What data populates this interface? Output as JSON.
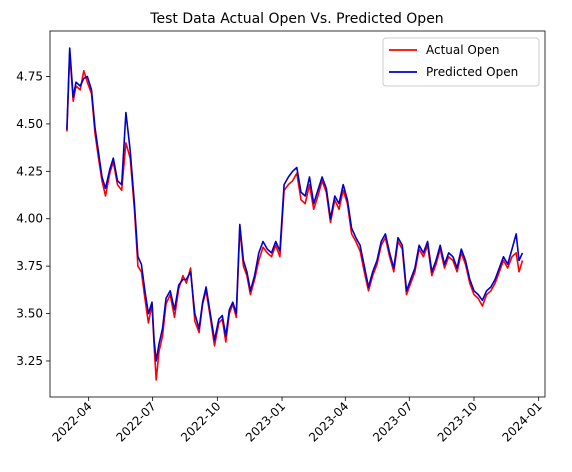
{
  "chart_data": {
    "type": "line",
    "title": "Test Data Actual Open Vs. Predicted Open",
    "xlabel": "",
    "ylabel": "",
    "legend_position": "top-right",
    "grid": false,
    "xlim": [
      "2022-02-05",
      "2024-01-10"
    ],
    "ylim": [
      3.06,
      4.99
    ],
    "x_ticks": [
      "2022-04",
      "2022-07",
      "2022-10",
      "2023-01",
      "2023-04",
      "2023-07",
      "2023-10",
      "2024-01"
    ],
    "y_ticks": [
      "3.25",
      "3.50",
      "3.75",
      "4.00",
      "4.25",
      "4.50",
      "4.75"
    ],
    "series": [
      {
        "name": "Actual Open",
        "color": "#ff0000",
        "points": [
          [
            "2022-03-01",
            4.46
          ],
          [
            "2022-03-05",
            4.88
          ],
          [
            "2022-03-10",
            4.62
          ],
          [
            "2022-03-14",
            4.7
          ],
          [
            "2022-03-20",
            4.68
          ],
          [
            "2022-03-25",
            4.78
          ],
          [
            "2022-03-30",
            4.72
          ],
          [
            "2022-04-05",
            4.66
          ],
          [
            "2022-04-10",
            4.45
          ],
          [
            "2022-04-15",
            4.32
          ],
          [
            "2022-04-20",
            4.2
          ],
          [
            "2022-04-25",
            4.12
          ],
          [
            "2022-05-01",
            4.24
          ],
          [
            "2022-05-06",
            4.3
          ],
          [
            "2022-05-12",
            4.18
          ],
          [
            "2022-05-18",
            4.15
          ],
          [
            "2022-05-24",
            4.4
          ],
          [
            "2022-05-30",
            4.32
          ],
          [
            "2022-06-05",
            4.05
          ],
          [
            "2022-06-10",
            3.75
          ],
          [
            "2022-06-15",
            3.72
          ],
          [
            "2022-06-20",
            3.58
          ],
          [
            "2022-06-25",
            3.45
          ],
          [
            "2022-06-30",
            3.55
          ],
          [
            "2022-07-03",
            3.33
          ],
          [
            "2022-07-06",
            3.15
          ],
          [
            "2022-07-10",
            3.3
          ],
          [
            "2022-07-15",
            3.38
          ],
          [
            "2022-07-20",
            3.55
          ],
          [
            "2022-07-26",
            3.6
          ],
          [
            "2022-08-01",
            3.48
          ],
          [
            "2022-08-07",
            3.63
          ],
          [
            "2022-08-13",
            3.7
          ],
          [
            "2022-08-18",
            3.66
          ],
          [
            "2022-08-24",
            3.74
          ],
          [
            "2022-08-30",
            3.46
          ],
          [
            "2022-09-05",
            3.4
          ],
          [
            "2022-09-10",
            3.55
          ],
          [
            "2022-09-15",
            3.62
          ],
          [
            "2022-09-21",
            3.48
          ],
          [
            "2022-09-27",
            3.33
          ],
          [
            "2022-10-03",
            3.45
          ],
          [
            "2022-10-08",
            3.47
          ],
          [
            "2022-10-13",
            3.35
          ],
          [
            "2022-10-18",
            3.5
          ],
          [
            "2022-10-23",
            3.55
          ],
          [
            "2022-10-28",
            3.48
          ],
          [
            "2022-11-02",
            3.95
          ],
          [
            "2022-11-07",
            3.75
          ],
          [
            "2022-11-12",
            3.7
          ],
          [
            "2022-11-17",
            3.6
          ],
          [
            "2022-11-23",
            3.68
          ],
          [
            "2022-11-29",
            3.78
          ],
          [
            "2022-12-05",
            3.85
          ],
          [
            "2022-12-11",
            3.82
          ],
          [
            "2022-12-17",
            3.8
          ],
          [
            "2022-12-23",
            3.86
          ],
          [
            "2022-12-29",
            3.8
          ],
          [
            "2023-01-04",
            4.15
          ],
          [
            "2023-01-10",
            4.18
          ],
          [
            "2023-01-16",
            4.2
          ],
          [
            "2023-01-22",
            4.24
          ],
          [
            "2023-01-28",
            4.1
          ],
          [
            "2023-02-03",
            4.08
          ],
          [
            "2023-02-09",
            4.18
          ],
          [
            "2023-02-15",
            4.05
          ],
          [
            "2023-02-21",
            4.12
          ],
          [
            "2023-02-27",
            4.2
          ],
          [
            "2023-03-05",
            4.14
          ],
          [
            "2023-03-11",
            3.98
          ],
          [
            "2023-03-17",
            4.1
          ],
          [
            "2023-03-23",
            4.05
          ],
          [
            "2023-03-29",
            4.15
          ],
          [
            "2023-04-04",
            4.08
          ],
          [
            "2023-04-10",
            3.92
          ],
          [
            "2023-04-16",
            3.88
          ],
          [
            "2023-04-22",
            3.83
          ],
          [
            "2023-04-28",
            3.72
          ],
          [
            "2023-05-04",
            3.62
          ],
          [
            "2023-05-10",
            3.7
          ],
          [
            "2023-05-16",
            3.76
          ],
          [
            "2023-05-22",
            3.86
          ],
          [
            "2023-05-28",
            3.9
          ],
          [
            "2023-06-03",
            3.8
          ],
          [
            "2023-06-09",
            3.72
          ],
          [
            "2023-06-15",
            3.88
          ],
          [
            "2023-06-21",
            3.84
          ],
          [
            "2023-06-27",
            3.6
          ],
          [
            "2023-07-03",
            3.66
          ],
          [
            "2023-07-09",
            3.72
          ],
          [
            "2023-07-15",
            3.84
          ],
          [
            "2023-07-21",
            3.8
          ],
          [
            "2023-07-27",
            3.86
          ],
          [
            "2023-08-02",
            3.7
          ],
          [
            "2023-08-08",
            3.76
          ],
          [
            "2023-08-14",
            3.84
          ],
          [
            "2023-08-20",
            3.74
          ],
          [
            "2023-08-26",
            3.8
          ],
          [
            "2023-09-01",
            3.78
          ],
          [
            "2023-09-07",
            3.72
          ],
          [
            "2023-09-13",
            3.82
          ],
          [
            "2023-09-19",
            3.76
          ],
          [
            "2023-09-25",
            3.66
          ],
          [
            "2023-10-01",
            3.6
          ],
          [
            "2023-10-07",
            3.58
          ],
          [
            "2023-10-13",
            3.54
          ],
          [
            "2023-10-19",
            3.6
          ],
          [
            "2023-10-25",
            3.62
          ],
          [
            "2023-10-31",
            3.66
          ],
          [
            "2023-11-06",
            3.72
          ],
          [
            "2023-11-12",
            3.78
          ],
          [
            "2023-11-18",
            3.74
          ],
          [
            "2023-11-24",
            3.8
          ],
          [
            "2023-11-30",
            3.82
          ],
          [
            "2023-12-04",
            3.72
          ],
          [
            "2023-12-09",
            3.78
          ]
        ]
      },
      {
        "name": "Predicted Open",
        "color": "#0000cc",
        "points": [
          [
            "2022-03-01",
            4.47
          ],
          [
            "2022-03-05",
            4.9
          ],
          [
            "2022-03-10",
            4.64
          ],
          [
            "2022-03-14",
            4.72
          ],
          [
            "2022-03-20",
            4.7
          ],
          [
            "2022-03-25",
            4.74
          ],
          [
            "2022-03-30",
            4.75
          ],
          [
            "2022-04-05",
            4.68
          ],
          [
            "2022-04-10",
            4.48
          ],
          [
            "2022-04-15",
            4.35
          ],
          [
            "2022-04-20",
            4.22
          ],
          [
            "2022-04-25",
            4.16
          ],
          [
            "2022-05-01",
            4.26
          ],
          [
            "2022-05-06",
            4.32
          ],
          [
            "2022-05-12",
            4.2
          ],
          [
            "2022-05-18",
            4.18
          ],
          [
            "2022-05-24",
            4.56
          ],
          [
            "2022-05-30",
            4.36
          ],
          [
            "2022-06-05",
            4.08
          ],
          [
            "2022-06-10",
            3.8
          ],
          [
            "2022-06-15",
            3.76
          ],
          [
            "2022-06-20",
            3.62
          ],
          [
            "2022-06-25",
            3.5
          ],
          [
            "2022-06-30",
            3.56
          ],
          [
            "2022-07-03",
            3.36
          ],
          [
            "2022-07-06",
            3.25
          ],
          [
            "2022-07-10",
            3.34
          ],
          [
            "2022-07-15",
            3.42
          ],
          [
            "2022-07-20",
            3.58
          ],
          [
            "2022-07-26",
            3.62
          ],
          [
            "2022-08-01",
            3.52
          ],
          [
            "2022-08-07",
            3.65
          ],
          [
            "2022-08-13",
            3.68
          ],
          [
            "2022-08-18",
            3.68
          ],
          [
            "2022-08-24",
            3.72
          ],
          [
            "2022-08-30",
            3.5
          ],
          [
            "2022-09-05",
            3.42
          ],
          [
            "2022-09-10",
            3.56
          ],
          [
            "2022-09-15",
            3.64
          ],
          [
            "2022-09-21",
            3.5
          ],
          [
            "2022-09-27",
            3.36
          ],
          [
            "2022-10-03",
            3.47
          ],
          [
            "2022-10-08",
            3.49
          ],
          [
            "2022-10-13",
            3.38
          ],
          [
            "2022-10-18",
            3.52
          ],
          [
            "2022-10-23",
            3.56
          ],
          [
            "2022-10-28",
            3.5
          ],
          [
            "2022-11-02",
            3.97
          ],
          [
            "2022-11-07",
            3.78
          ],
          [
            "2022-11-12",
            3.72
          ],
          [
            "2022-11-17",
            3.62
          ],
          [
            "2022-11-23",
            3.7
          ],
          [
            "2022-11-29",
            3.82
          ],
          [
            "2022-12-05",
            3.88
          ],
          [
            "2022-12-11",
            3.84
          ],
          [
            "2022-12-17",
            3.82
          ],
          [
            "2022-12-23",
            3.88
          ],
          [
            "2022-12-29",
            3.83
          ],
          [
            "2023-01-04",
            4.18
          ],
          [
            "2023-01-10",
            4.22
          ],
          [
            "2023-01-16",
            4.25
          ],
          [
            "2023-01-22",
            4.27
          ],
          [
            "2023-01-28",
            4.14
          ],
          [
            "2023-02-03",
            4.12
          ],
          [
            "2023-02-09",
            4.22
          ],
          [
            "2023-02-15",
            4.08
          ],
          [
            "2023-02-21",
            4.15
          ],
          [
            "2023-02-27",
            4.22
          ],
          [
            "2023-03-05",
            4.16
          ],
          [
            "2023-03-11",
            4.0
          ],
          [
            "2023-03-17",
            4.12
          ],
          [
            "2023-03-23",
            4.08
          ],
          [
            "2023-03-29",
            4.18
          ],
          [
            "2023-04-04",
            4.1
          ],
          [
            "2023-04-10",
            3.95
          ],
          [
            "2023-04-16",
            3.9
          ],
          [
            "2023-04-22",
            3.86
          ],
          [
            "2023-04-28",
            3.75
          ],
          [
            "2023-05-04",
            3.64
          ],
          [
            "2023-05-10",
            3.72
          ],
          [
            "2023-05-16",
            3.78
          ],
          [
            "2023-05-22",
            3.88
          ],
          [
            "2023-05-28",
            3.92
          ],
          [
            "2023-06-03",
            3.82
          ],
          [
            "2023-06-09",
            3.74
          ],
          [
            "2023-06-15",
            3.9
          ],
          [
            "2023-06-21",
            3.86
          ],
          [
            "2023-06-27",
            3.62
          ],
          [
            "2023-07-03",
            3.68
          ],
          [
            "2023-07-09",
            3.74
          ],
          [
            "2023-07-15",
            3.86
          ],
          [
            "2023-07-21",
            3.82
          ],
          [
            "2023-07-27",
            3.88
          ],
          [
            "2023-08-02",
            3.72
          ],
          [
            "2023-08-08",
            3.78
          ],
          [
            "2023-08-14",
            3.86
          ],
          [
            "2023-08-20",
            3.76
          ],
          [
            "2023-08-26",
            3.82
          ],
          [
            "2023-09-01",
            3.8
          ],
          [
            "2023-09-07",
            3.74
          ],
          [
            "2023-09-13",
            3.84
          ],
          [
            "2023-09-19",
            3.78
          ],
          [
            "2023-09-25",
            3.68
          ],
          [
            "2023-10-01",
            3.62
          ],
          [
            "2023-10-07",
            3.6
          ],
          [
            "2023-10-13",
            3.57
          ],
          [
            "2023-10-19",
            3.62
          ],
          [
            "2023-10-25",
            3.64
          ],
          [
            "2023-10-31",
            3.68
          ],
          [
            "2023-11-06",
            3.74
          ],
          [
            "2023-11-12",
            3.8
          ],
          [
            "2023-11-18",
            3.76
          ],
          [
            "2023-11-24",
            3.84
          ],
          [
            "2023-11-30",
            3.92
          ],
          [
            "2023-12-04",
            3.78
          ],
          [
            "2023-12-09",
            3.82
          ]
        ]
      }
    ]
  }
}
